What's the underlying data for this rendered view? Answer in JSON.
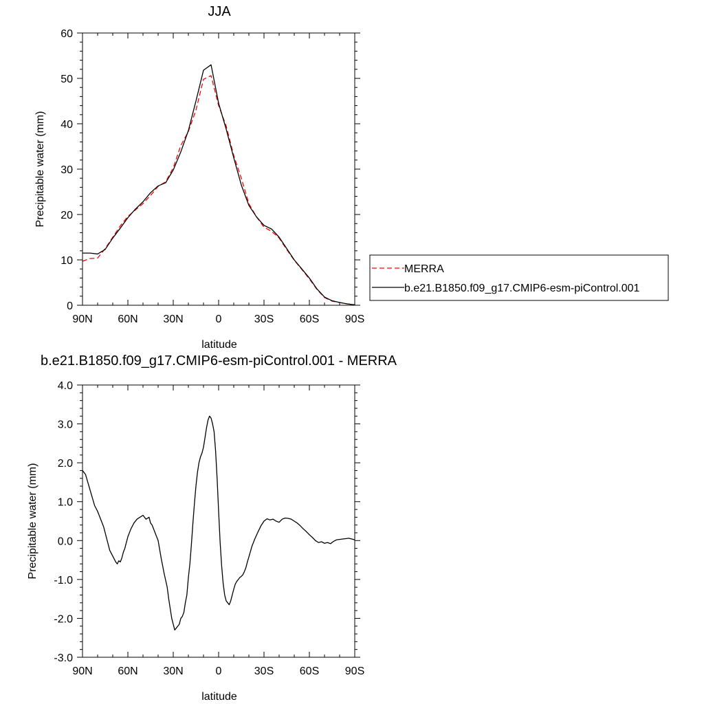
{
  "colors": {
    "background": "#ffffff",
    "model_line": "#000000",
    "merra_line": "#ff0000",
    "frame": "#000000"
  },
  "legend": {
    "items": [
      {
        "label": "MERRA",
        "style": "dashed",
        "color": "#ff0000"
      },
      {
        "label": "b.e21.B1850.f09_g17.CMIP6-esm-piControl.001",
        "style": "solid",
        "color": "#000000"
      }
    ]
  },
  "chart_data": [
    {
      "type": "line",
      "title": "JJA",
      "xlabel": "latitude",
      "ylabel": "Precipitable water (mm)",
      "x_tick_labels": [
        "90N",
        "60N",
        "30N",
        "0",
        "30S",
        "60S",
        "90S"
      ],
      "x_ticks": [
        90,
        60,
        30,
        0,
        -30,
        -60,
        -90
      ],
      "xlim": [
        90,
        -90
      ],
      "y_tick_labels": [
        "0",
        "10",
        "20",
        "30",
        "40",
        "50",
        "60"
      ],
      "y_ticks": [
        0,
        10,
        20,
        30,
        40,
        50,
        60
      ],
      "ylim": [
        0,
        60
      ],
      "grid": false,
      "legend_position": "right",
      "series": [
        {
          "name": "MERRA",
          "style": "dashed",
          "color": "#ff0000",
          "x": [
            90,
            85,
            80,
            75,
            70,
            65,
            60,
            55,
            50,
            45,
            40,
            35,
            30,
            25,
            20,
            15,
            10,
            5,
            0,
            -5,
            -10,
            -15,
            -20,
            -25,
            -30,
            -35,
            -40,
            -45,
            -50,
            -55,
            -60,
            -65,
            -70,
            -75,
            -80,
            -85,
            -90
          ],
          "y": [
            9.7,
            10.3,
            10.4,
            12.5,
            15.0,
            17.5,
            19.6,
            21.0,
            22.4,
            24.2,
            26.2,
            27.2,
            30.3,
            35.2,
            38.3,
            43.0,
            49.8,
            50.6,
            44.0,
            39.5,
            33.0,
            28.0,
            22.4,
            19.5,
            17.2,
            16.3,
            14.8,
            12.3,
            9.9,
            7.9,
            5.8,
            3.5,
            1.7,
            0.9,
            0.6,
            0.3,
            0.1
          ]
        },
        {
          "name": "b.e21.B1850.f09_g17.CMIP6-esm-piControl.001",
          "style": "solid",
          "color": "#000000",
          "x": [
            90,
            85,
            80,
            75,
            70,
            65,
            60,
            55,
            50,
            45,
            40,
            35,
            30,
            25,
            20,
            15,
            10,
            5,
            0,
            -5,
            -10,
            -15,
            -20,
            -25,
            -30,
            -35,
            -40,
            -45,
            -50,
            -55,
            -60,
            -65,
            -70,
            -75,
            -80,
            -85,
            -90
          ],
          "y": [
            11.5,
            11.5,
            11.3,
            12.3,
            14.8,
            17.0,
            19.3,
            21.2,
            22.8,
            24.8,
            26.3,
            27.0,
            29.8,
            33.8,
            38.5,
            45.0,
            51.8,
            53.0,
            44.5,
            38.8,
            32.5,
            26.5,
            22.0,
            19.5,
            17.6,
            16.8,
            15.0,
            12.5,
            10.0,
            8.0,
            6.0,
            3.6,
            1.8,
            1.0,
            0.6,
            0.3,
            0.1
          ]
        }
      ]
    },
    {
      "type": "line",
      "title": "b.e21.B1850.f09_g17.CMIP6-esm-piControl.001 - MERRA",
      "xlabel": "latitude",
      "ylabel": "Precipitable water (mm)",
      "x_tick_labels": [
        "90N",
        "60N",
        "30N",
        "0",
        "30S",
        "60S",
        "90S"
      ],
      "x_ticks": [
        90,
        60,
        30,
        0,
        -30,
        -60,
        -90
      ],
      "xlim": [
        90,
        -90
      ],
      "y_tick_labels": [
        "-3.0",
        "-2.0",
        "-1.0",
        "0.0",
        "1.0",
        "2.0",
        "3.0",
        "4.0"
      ],
      "y_ticks": [
        -3,
        -2,
        -1,
        0,
        1,
        2,
        3,
        4
      ],
      "ylim": [
        -3,
        4
      ],
      "grid": false,
      "series": [
        {
          "style": "solid",
          "color": "#000000",
          "x": [
            90,
            88,
            85,
            82,
            80,
            78,
            76,
            74,
            72,
            70,
            68,
            67,
            66,
            65,
            64,
            63,
            62,
            60,
            58,
            56,
            54,
            52,
            50,
            48,
            46,
            45,
            44,
            42,
            40,
            38,
            36,
            34,
            33,
            32,
            31,
            30,
            29,
            28,
            27,
            26,
            25,
            24,
            23,
            22,
            21,
            20,
            19,
            18,
            17,
            16,
            15,
            14,
            13,
            12,
            11,
            10,
            9,
            8,
            7,
            6,
            5,
            4,
            3,
            2,
            1,
            0,
            -1,
            -2,
            -3,
            -4,
            -5,
            -6,
            -7,
            -8,
            -9,
            -10,
            -11,
            -12,
            -13,
            -14,
            -15,
            -16,
            -17,
            -18,
            -19,
            -20,
            -22,
            -24,
            -26,
            -28,
            -30,
            -32,
            -34,
            -36,
            -38,
            -40,
            -42,
            -44,
            -46,
            -48,
            -50,
            -52,
            -54,
            -56,
            -58,
            -60,
            -62,
            -64,
            -66,
            -68,
            -70,
            -72,
            -74,
            -76,
            -78,
            -80,
            -82,
            -84,
            -86,
            -88,
            -90
          ],
          "y": [
            1.8,
            1.7,
            1.3,
            0.9,
            0.75,
            0.55,
            0.35,
            0.05,
            -0.25,
            -0.4,
            -0.55,
            -0.6,
            -0.52,
            -0.55,
            -0.45,
            -0.3,
            -0.2,
            0.1,
            0.3,
            0.45,
            0.55,
            0.6,
            0.65,
            0.55,
            0.6,
            0.45,
            0.4,
            0.2,
            0.0,
            -0.45,
            -0.85,
            -1.2,
            -1.5,
            -1.75,
            -2.0,
            -2.15,
            -2.3,
            -2.25,
            -2.2,
            -2.15,
            -2.0,
            -1.95,
            -1.85,
            -1.6,
            -1.4,
            -0.95,
            -0.6,
            -0.1,
            0.45,
            0.95,
            1.4,
            1.75,
            2.0,
            2.15,
            2.25,
            2.4,
            2.65,
            2.9,
            3.1,
            3.2,
            3.15,
            3.0,
            2.8,
            2.3,
            1.6,
            0.75,
            -0.05,
            -0.65,
            -1.1,
            -1.4,
            -1.55,
            -1.6,
            -1.65,
            -1.55,
            -1.4,
            -1.25,
            -1.12,
            -1.05,
            -1.0,
            -0.95,
            -0.92,
            -0.88,
            -0.8,
            -0.7,
            -0.55,
            -0.42,
            -0.15,
            0.05,
            0.22,
            0.38,
            0.5,
            0.56,
            0.53,
            0.55,
            0.5,
            0.47,
            0.55,
            0.58,
            0.57,
            0.55,
            0.5,
            0.45,
            0.38,
            0.3,
            0.23,
            0.15,
            0.08,
            0.0,
            -0.05,
            -0.03,
            -0.07,
            -0.05,
            -0.08,
            -0.02,
            0.02,
            0.03,
            0.04,
            0.05,
            0.06,
            0.04,
            0.02
          ]
        }
      ]
    }
  ]
}
